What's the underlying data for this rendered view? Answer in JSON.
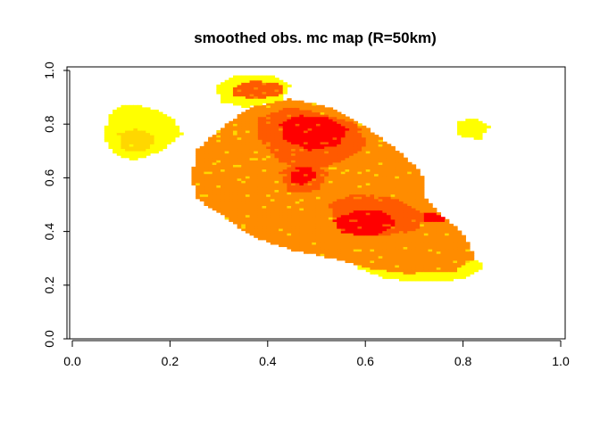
{
  "chart_data": {
    "type": "heatmap",
    "title": "smoothed obs. mc map (R=50km)",
    "xlabel": "",
    "ylabel": "",
    "xlim": [
      0,
      1
    ],
    "ylim": [
      0,
      1
    ],
    "x_ticks": [
      "0.0",
      "0.2",
      "0.4",
      "0.6",
      "0.8",
      "1.0"
    ],
    "y_ticks": [
      "0.0",
      "0.2",
      "0.4",
      "0.6",
      "0.8",
      "1.0"
    ],
    "grid": false,
    "legend": "none",
    "colors": {
      "low": "#FFFF00",
      "mid_low": "#FFD700",
      "mid": "#FF8C00",
      "mid_high": "#FF5A00",
      "high": "#FF0000"
    },
    "regions": [
      {
        "level": 1,
        "polygon": [
          [
            0.07,
            0.83
          ],
          [
            0.1,
            0.87
          ],
          [
            0.15,
            0.86
          ],
          [
            0.2,
            0.82
          ],
          [
            0.22,
            0.76
          ],
          [
            0.18,
            0.7
          ],
          [
            0.12,
            0.66
          ],
          [
            0.08,
            0.69
          ],
          [
            0.06,
            0.75
          ]
        ]
      },
      {
        "level": 2,
        "polygon": [
          [
            0.09,
            0.76
          ],
          [
            0.13,
            0.78
          ],
          [
            0.17,
            0.75
          ],
          [
            0.15,
            0.7
          ],
          [
            0.1,
            0.7
          ]
        ]
      },
      {
        "level": 1,
        "polygon": [
          [
            0.29,
            0.94
          ],
          [
            0.33,
            0.98
          ],
          [
            0.4,
            0.98
          ],
          [
            0.44,
            0.94
          ],
          [
            0.42,
            0.88
          ],
          [
            0.35,
            0.86
          ],
          [
            0.3,
            0.88
          ]
        ]
      },
      {
        "level": 4,
        "polygon": [
          [
            0.32,
            0.93
          ],
          [
            0.36,
            0.96
          ],
          [
            0.42,
            0.95
          ],
          [
            0.43,
            0.91
          ],
          [
            0.38,
            0.89
          ],
          [
            0.33,
            0.9
          ]
        ]
      },
      {
        "level": 1,
        "polygon": [
          [
            0.78,
            0.8
          ],
          [
            0.82,
            0.82
          ],
          [
            0.85,
            0.79
          ],
          [
            0.83,
            0.74
          ],
          [
            0.79,
            0.75
          ]
        ]
      },
      {
        "level": 3,
        "polygon": [
          [
            0.25,
            0.7
          ],
          [
            0.3,
            0.78
          ],
          [
            0.36,
            0.86
          ],
          [
            0.44,
            0.89
          ],
          [
            0.52,
            0.86
          ],
          [
            0.6,
            0.78
          ],
          [
            0.66,
            0.7
          ],
          [
            0.71,
            0.62
          ],
          [
            0.72,
            0.52
          ],
          [
            0.75,
            0.46
          ],
          [
            0.8,
            0.38
          ],
          [
            0.82,
            0.3
          ],
          [
            0.78,
            0.25
          ],
          [
            0.68,
            0.24
          ],
          [
            0.6,
            0.26
          ],
          [
            0.52,
            0.3
          ],
          [
            0.44,
            0.33
          ],
          [
            0.36,
            0.38
          ],
          [
            0.3,
            0.46
          ],
          [
            0.25,
            0.52
          ],
          [
            0.24,
            0.6
          ]
        ]
      },
      {
        "level": 2,
        "polygon": [
          [
            0.26,
            0.52
          ],
          [
            0.3,
            0.46
          ],
          [
            0.36,
            0.38
          ],
          [
            0.44,
            0.33
          ],
          [
            0.52,
            0.3
          ],
          [
            0.5,
            0.36
          ],
          [
            0.44,
            0.4
          ],
          [
            0.36,
            0.45
          ],
          [
            0.3,
            0.5
          ]
        ]
      },
      {
        "level": 1,
        "polygon": [
          [
            0.58,
            0.26
          ],
          [
            0.64,
            0.22
          ],
          [
            0.72,
            0.21
          ],
          [
            0.8,
            0.22
          ],
          [
            0.84,
            0.27
          ],
          [
            0.8,
            0.31
          ],
          [
            0.72,
            0.31
          ],
          [
            0.64,
            0.3
          ],
          [
            0.58,
            0.29
          ]
        ]
      },
      {
        "level": 4,
        "polygon": [
          [
            0.38,
            0.82
          ],
          [
            0.44,
            0.86
          ],
          [
            0.5,
            0.84
          ],
          [
            0.58,
            0.8
          ],
          [
            0.6,
            0.72
          ],
          [
            0.55,
            0.66
          ],
          [
            0.48,
            0.62
          ],
          [
            0.42,
            0.66
          ],
          [
            0.38,
            0.74
          ]
        ]
      },
      {
        "level": 4,
        "polygon": [
          [
            0.42,
            0.62
          ],
          [
            0.47,
            0.66
          ],
          [
            0.52,
            0.62
          ],
          [
            0.5,
            0.55
          ],
          [
            0.44,
            0.54
          ]
        ]
      },
      {
        "level": 4,
        "polygon": [
          [
            0.52,
            0.5
          ],
          [
            0.58,
            0.54
          ],
          [
            0.66,
            0.52
          ],
          [
            0.72,
            0.46
          ],
          [
            0.7,
            0.4
          ],
          [
            0.62,
            0.38
          ],
          [
            0.54,
            0.42
          ]
        ]
      },
      {
        "level": 5,
        "polygon": [
          [
            0.42,
            0.8
          ],
          [
            0.46,
            0.83
          ],
          [
            0.52,
            0.82
          ],
          [
            0.56,
            0.78
          ],
          [
            0.54,
            0.72
          ],
          [
            0.48,
            0.7
          ],
          [
            0.43,
            0.74
          ]
        ]
      },
      {
        "level": 5,
        "polygon": [
          [
            0.44,
            0.63
          ],
          [
            0.48,
            0.64
          ],
          [
            0.5,
            0.6
          ],
          [
            0.47,
            0.57
          ],
          [
            0.44,
            0.58
          ]
        ]
      },
      {
        "level": 5,
        "polygon": [
          [
            0.53,
            0.44
          ],
          [
            0.58,
            0.48
          ],
          [
            0.64,
            0.47
          ],
          [
            0.66,
            0.42
          ],
          [
            0.61,
            0.38
          ],
          [
            0.55,
            0.39
          ]
        ]
      },
      {
        "level": 5,
        "polygon": [
          [
            0.71,
            0.47
          ],
          [
            0.75,
            0.46
          ],
          [
            0.76,
            0.43
          ],
          [
            0.72,
            0.43
          ]
        ]
      }
    ]
  }
}
